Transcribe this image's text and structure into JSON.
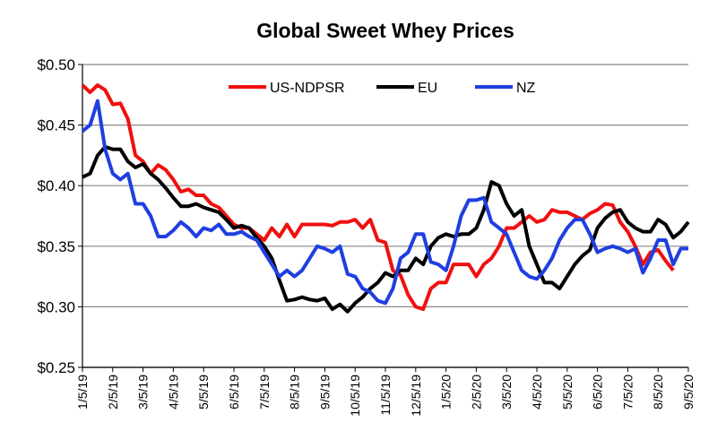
{
  "chart_data": {
    "type": "line",
    "title": "Global Sweet Whey Prices",
    "categories": [
      "1/5/19",
      null,
      null,
      null,
      "2/5/19",
      null,
      null,
      null,
      "3/5/19",
      null,
      null,
      null,
      "4/5/19",
      null,
      null,
      null,
      "5/5/19",
      null,
      null,
      null,
      "6/5/19",
      null,
      null,
      null,
      "7/5/19",
      null,
      null,
      null,
      "8/5/19",
      null,
      null,
      null,
      "9/5/19",
      null,
      null,
      null,
      "10/5/19",
      null,
      null,
      null,
      "11/5/19",
      null,
      null,
      null,
      "12/5/19",
      null,
      null,
      null,
      "1/5/20",
      null,
      null,
      null,
      "2/5/20",
      null,
      null,
      null,
      "3/5/20",
      null,
      null,
      null,
      "4/5/20",
      null,
      null,
      null,
      "5/5/20",
      null,
      null,
      null,
      "6/5/20",
      null,
      null,
      null,
      "7/5/20",
      null,
      null,
      null,
      "8/5/20",
      null,
      null,
      null,
      "9/5/20"
    ],
    "series": [
      {
        "name": "US-NDPSR",
        "color": "#f01010",
        "values": [
          0.483,
          0.477,
          0.483,
          0.479,
          0.467,
          0.468,
          0.455,
          0.425,
          0.42,
          0.41,
          0.417,
          0.413,
          0.405,
          0.395,
          0.397,
          0.392,
          0.392,
          0.385,
          0.382,
          0.375,
          0.368,
          0.365,
          0.365,
          0.36,
          0.355,
          0.365,
          0.358,
          0.368,
          0.358,
          0.368,
          0.368,
          0.368,
          0.368,
          0.367,
          0.37,
          0.37,
          0.372,
          0.365,
          0.372,
          0.355,
          0.353,
          0.33,
          0.326,
          0.31,
          0.3,
          0.298,
          0.315,
          0.32,
          0.32,
          0.335,
          0.335,
          0.335,
          0.325,
          0.335,
          0.34,
          0.35,
          0.365,
          0.365,
          0.37,
          0.375,
          0.37,
          0.372,
          0.38,
          0.378,
          0.378,
          0.375,
          0.372,
          0.377,
          0.38,
          0.385,
          0.384,
          0.37,
          0.362,
          0.35,
          0.335,
          0.345,
          0.347,
          0.338,
          0.33,
          null,
          null
        ]
      },
      {
        "name": "EU",
        "color": "#000000",
        "values": [
          0.407,
          0.41,
          0.425,
          0.432,
          0.43,
          0.43,
          0.42,
          0.415,
          0.418,
          0.41,
          0.405,
          0.398,
          0.39,
          0.383,
          0.383,
          0.385,
          0.382,
          0.38,
          0.378,
          0.372,
          0.365,
          0.367,
          0.365,
          0.357,
          0.35,
          0.34,
          0.322,
          0.305,
          0.306,
          0.308,
          0.306,
          0.305,
          0.307,
          0.298,
          0.302,
          0.296,
          0.303,
          0.308,
          0.315,
          0.32,
          0.328,
          0.325,
          0.33,
          0.33,
          0.34,
          0.335,
          0.35,
          0.357,
          0.36,
          0.358,
          0.36,
          0.36,
          0.365,
          0.38,
          0.403,
          0.4,
          0.385,
          0.375,
          0.38,
          0.35,
          0.335,
          0.32,
          0.32,
          0.315,
          0.325,
          0.335,
          0.342,
          0.347,
          0.365,
          0.373,
          0.378,
          0.38,
          0.37,
          0.365,
          0.362,
          0.362,
          0.372,
          0.368,
          0.357,
          0.362,
          0.37
        ]
      },
      {
        "name": "NZ",
        "color": "#1f3fe0",
        "values": [
          0.445,
          0.45,
          0.47,
          0.43,
          0.41,
          0.405,
          0.41,
          0.385,
          0.385,
          0.375,
          0.358,
          0.358,
          0.363,
          0.37,
          0.365,
          0.358,
          0.365,
          0.363,
          0.368,
          0.36,
          0.36,
          0.362,
          0.358,
          0.355,
          0.345,
          0.335,
          0.325,
          0.33,
          0.325,
          0.33,
          0.34,
          0.35,
          0.348,
          0.345,
          0.35,
          0.327,
          0.325,
          0.315,
          0.312,
          0.305,
          0.303,
          0.315,
          0.34,
          0.345,
          0.36,
          0.36,
          0.337,
          0.335,
          0.33,
          0.35,
          0.375,
          0.388,
          0.388,
          0.39,
          0.37,
          0.365,
          0.36,
          0.345,
          0.33,
          0.325,
          0.323,
          0.33,
          0.34,
          0.355,
          0.365,
          0.372,
          0.372,
          0.36,
          0.345,
          0.348,
          0.35,
          0.348,
          0.345,
          0.348,
          0.328,
          0.34,
          0.355,
          0.355,
          0.335,
          0.348,
          0.348
        ]
      }
    ],
    "ylim": [
      0.25,
      0.5
    ],
    "yticks": [
      {
        "value": 0.25,
        "label": "$0.25"
      },
      {
        "value": 0.3,
        "label": "$0.30"
      },
      {
        "value": 0.35,
        "label": "$0.35"
      },
      {
        "value": 0.4,
        "label": "$0.40"
      },
      {
        "value": 0.45,
        "label": "$0.45"
      },
      {
        "value": 0.5,
        "label": "$0.50"
      }
    ],
    "grid": true,
    "legend": "top"
  }
}
